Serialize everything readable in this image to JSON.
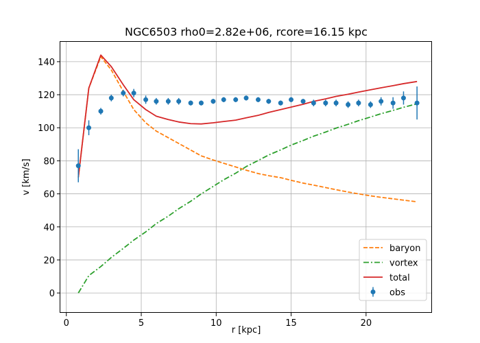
{
  "chart_data": {
    "type": "line",
    "title": "NGC6503  rho0=2.82e+06, rcore=16.15 kpc",
    "xlabel": "r [kpc]",
    "ylabel": "v [km/s]",
    "xlim": [
      -0.4,
      24.4
    ],
    "ylim": [
      -12,
      152
    ],
    "xticks": [
      0,
      5,
      10,
      15,
      20
    ],
    "yticks": [
      0,
      20,
      40,
      60,
      80,
      100,
      120,
      140
    ],
    "grid": true,
    "legend_position": "lower-right",
    "colors": {
      "baryon": "#ff7f0e",
      "vortex": "#2ca02c",
      "total": "#d62728",
      "obs": "#1f77b4"
    },
    "series": [
      {
        "name": "baryon",
        "style": "dashed",
        "x": [
          0.8,
          1.5,
          2.3,
          3.0,
          3.8,
          4.5,
          5.3,
          6.0,
          6.8,
          7.5,
          8.3,
          9.0,
          9.8,
          10.5,
          11.3,
          12.0,
          12.8,
          13.5,
          14.3,
          15.0,
          15.8,
          16.5,
          17.3,
          18.0,
          18.8,
          19.5,
          20.3,
          21.0,
          21.8,
          22.5,
          23.4
        ],
        "y": [
          70,
          124,
          143,
          135,
          122,
          111,
          103,
          98,
          94,
          90.5,
          86.5,
          83,
          80.5,
          78.5,
          76.3,
          74.3,
          72.3,
          71,
          69.8,
          68.2,
          66.5,
          65.3,
          63.8,
          62.5,
          61.1,
          60,
          58.8,
          57.9,
          57,
          56.2,
          55.2
        ]
      },
      {
        "name": "vortex",
        "style": "dashdot",
        "x": [
          0.8,
          1.5,
          2.3,
          3.0,
          3.8,
          4.5,
          5.3,
          6.0,
          6.8,
          7.5,
          8.3,
          9.0,
          9.8,
          10.5,
          11.3,
          12.0,
          12.8,
          13.5,
          14.3,
          15.0,
          15.8,
          16.5,
          17.3,
          18.0,
          18.8,
          19.5,
          20.3,
          21.0,
          21.8,
          22.5,
          23.4
        ],
        "y": [
          0,
          10.5,
          16,
          21.5,
          27,
          32,
          37,
          42,
          46.5,
          51,
          55.5,
          60,
          64.5,
          68.5,
          72.5,
          76.5,
          80.2,
          83.5,
          86.6,
          89.5,
          92.3,
          94.9,
          97.4,
          99.8,
          102.1,
          104.3,
          106.5,
          108.5,
          110.5,
          112.4,
          114.5
        ]
      },
      {
        "name": "total",
        "style": "solid",
        "x": [
          0.8,
          1.5,
          2.3,
          3.0,
          3.8,
          4.5,
          5.3,
          6.0,
          6.8,
          7.5,
          8.3,
          9.0,
          9.8,
          10.5,
          11.3,
          12.0,
          12.8,
          13.5,
          14.3,
          15.0,
          15.8,
          16.5,
          17.3,
          18.0,
          18.8,
          19.5,
          20.3,
          21.0,
          21.8,
          22.5,
          23.4
        ],
        "y": [
          70,
          124,
          144,
          137,
          126,
          117,
          111,
          107,
          105,
          103.5,
          102.5,
          102.3,
          103,
          103.8,
          104.6,
          106,
          107.5,
          109.3,
          111,
          112.5,
          114.2,
          116,
          117.5,
          119,
          120.3,
          121.6,
          123,
          124.2,
          125.5,
          126.7,
          128
        ]
      },
      {
        "name": "obs",
        "style": "errorbar",
        "x": [
          0.8,
          1.5,
          2.3,
          3.0,
          3.8,
          4.5,
          5.3,
          6.0,
          6.8,
          7.5,
          8.3,
          9.0,
          9.8,
          10.5,
          11.3,
          12.0,
          12.8,
          13.5,
          14.3,
          15.0,
          15.8,
          16.5,
          17.3,
          18.0,
          18.8,
          19.5,
          20.3,
          21.0,
          21.8,
          22.5,
          23.4
        ],
        "y": [
          77,
          100,
          110,
          118,
          121,
          121,
          117,
          116,
          116,
          116,
          115,
          115,
          116,
          117,
          117,
          118,
          117,
          116,
          115,
          117,
          116,
          115,
          115,
          115,
          114,
          115,
          114,
          116,
          115,
          118,
          115
        ],
        "err": [
          10,
          4.5,
          2,
          2,
          2,
          2.5,
          2.5,
          2,
          2,
          2,
          1.5,
          1.5,
          1.5,
          1.5,
          1.5,
          1.5,
          1.5,
          1.5,
          1.5,
          1.5,
          1.5,
          2,
          2,
          2,
          2,
          2,
          2,
          2.5,
          3.5,
          4,
          10
        ]
      }
    ]
  }
}
